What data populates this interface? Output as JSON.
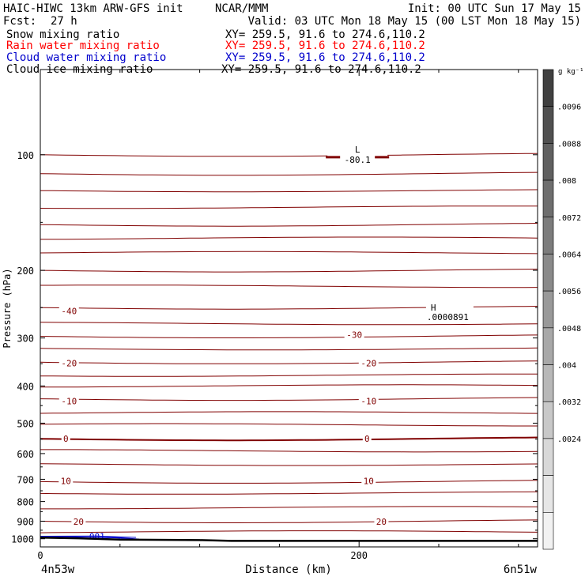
{
  "header": {
    "title_left": "HAIC-HIWC 13km ARW-GFS init",
    "org": "NCAR/MMM",
    "init": "Init: 00 UTC Sun 17 May 15",
    "fcst_label": "Fcst:",
    "fcst_value": "27 h",
    "valid": "Valid: 03 UTC Mon 18 May 15 (00 LST Mon 18 May 15)"
  },
  "fields": [
    {
      "name": "Snow mixing ratio",
      "xy": "XY= 259.5, 91.6 to 274.6,110.2",
      "color": "#000000"
    },
    {
      "name": "Rain water mixing ratio",
      "xy": "XY= 259.5, 91.6 to 274.6,110.2",
      "color": "#ff0000"
    },
    {
      "name": "Cloud water mixing ratio",
      "xy": "XY= 259.5, 91.6 to 274.6,110.2",
      "color": "#0000cc"
    },
    {
      "name": "Cloud ice mixing ratio",
      "xy": "XY= 259.5, 91.6 to 274.6,110.2",
      "color": "#000000"
    }
  ],
  "chart_data": {
    "type": "contour cross-section",
    "ylabel": "Pressure (hPa)",
    "xlabel": "Distance (km)",
    "x_ticks": [
      "0",
      "200"
    ],
    "x_end_labels": {
      "left": "4n53w",
      "right": "6n51w"
    },
    "y_ticks": [
      100,
      200,
      300,
      400,
      500,
      600,
      700,
      800,
      900,
      1000
    ],
    "y_range": [
      1050,
      60
    ],
    "x_range": [
      0,
      312
    ],
    "y_scale": "log",
    "isotherm_color": "#800000",
    "isotherms": [
      {
        "value": -80,
        "p": 100
      },
      {
        "value": -70,
        "p": 112
      },
      {
        "value": -60,
        "p": 152
      },
      {
        "value": -50,
        "p": 200
      },
      {
        "value": -40,
        "p": 250
      },
      {
        "value": -30,
        "p": 297
      },
      {
        "value": -20,
        "p": 347
      },
      {
        "value": -10,
        "p": 432
      },
      {
        "value": 0,
        "p": 549
      },
      {
        "value": 10,
        "p": 710
      },
      {
        "value": 20,
        "p": 900
      }
    ],
    "contour_labels": [
      {
        "text": "-40",
        "x": 18,
        "p": 255
      },
      {
        "text": "-30",
        "x": 197,
        "p": 294
      },
      {
        "text": "-20",
        "x": 18,
        "p": 349
      },
      {
        "text": "-20",
        "x": 206,
        "p": 349
      },
      {
        "text": "-10",
        "x": 18,
        "p": 438
      },
      {
        "text": "-10",
        "x": 206,
        "p": 438
      },
      {
        "text": "0",
        "x": 16,
        "p": 548
      },
      {
        "text": "0",
        "x": 205,
        "p": 548
      },
      {
        "text": "10",
        "x": 16,
        "p": 707
      },
      {
        "text": "10",
        "x": 206,
        "p": 707
      },
      {
        "text": "20",
        "x": 24,
        "p": 902
      },
      {
        "text": "20",
        "x": 214,
        "p": 902
      }
    ],
    "extrema": [
      {
        "type": "L",
        "value": "-80.1",
        "x": 199,
        "p": 101
      },
      {
        "type": "H",
        "value": ".0000891",
        "x": 244,
        "p": 258
      }
    ],
    "cloud_water_label": ".001",
    "terrain_color": "#000000",
    "terrain": [
      {
        "x": 0,
        "p": 993
      },
      {
        "x": 24,
        "p": 997
      },
      {
        "x": 50,
        "p": 1005
      },
      {
        "x": 100,
        "p": 1008
      },
      {
        "x": 120,
        "p": 1013
      },
      {
        "x": 200,
        "p": 1013
      },
      {
        "x": 312,
        "p": 1013
      }
    ],
    "colorbar": {
      "unit": "g kg⁻¹",
      "ticks": [
        ".0096",
        ".0088",
        ".008",
        ".0072",
        ".0064",
        ".0056",
        ".0048",
        ".004",
        ".0032",
        ".0024"
      ],
      "colors": [
        "#404040",
        "#505050",
        "#606060",
        "#6e6e6e",
        "#7c7c7c",
        "#8a8a8a",
        "#999999",
        "#a8a8a8",
        "#b8b8b8",
        "#c8c8c8",
        "#d8d8d8",
        "#e6e6e6",
        "#f2f2f2"
      ]
    }
  }
}
